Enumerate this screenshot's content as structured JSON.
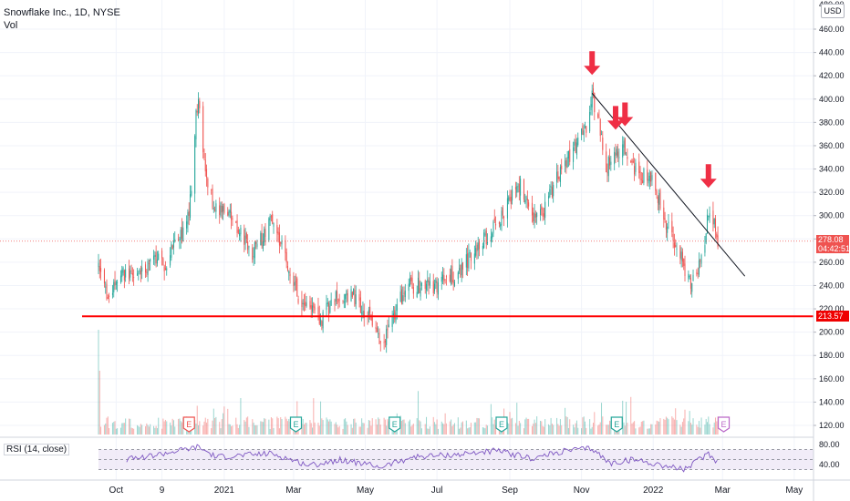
{
  "header": {
    "title": "Snowflake Inc., 1D, NYSE",
    "volume_label": "Vol"
  },
  "currency_button": "USD",
  "price_scale": {
    "labels": [
      "460.00",
      "440.00",
      "420.00",
      "400.00",
      "380.00",
      "360.00",
      "340.00",
      "320.00",
      "300.00",
      "280.00",
      "260.00",
      "240.00",
      "220.00",
      "200.00",
      "180.00",
      "160.00",
      "140.00",
      "120.00"
    ],
    "top_partial": "480.00",
    "current_price": "278.08",
    "countdown": "04:42:51",
    "support_price": "213.57"
  },
  "rsi": {
    "label": "RSI (14, close)",
    "scale_labels": [
      "80.00",
      "40.00"
    ]
  },
  "time_axis": {
    "labels": [
      "Oct",
      "9",
      "2021",
      "Mar",
      "May",
      "Jul",
      "Sep",
      "Nov",
      "2022",
      "Mar",
      "May"
    ]
  },
  "events": {
    "earnings_marker": "E"
  },
  "colors": {
    "up": "#26a69a",
    "down": "#ef5350",
    "support_line": "#ff0000",
    "arrow": "#ef2f45",
    "trendline": "#131722",
    "rsi_line": "#7e57c2",
    "rsi_band": "#ede7f6",
    "current_price_badge": "#ef5350"
  },
  "chart_data": {
    "type": "candlestick",
    "title": "Snowflake Inc., 1D, NYSE",
    "y_range": [
      110,
      470
    ],
    "x_range": [
      "2020-09-16",
      "2022-05-05"
    ],
    "close_path": [
      [
        "2020-09-16",
        254
      ],
      [
        "2020-09-25",
        228
      ],
      [
        "2020-10-05",
        250
      ],
      [
        "2020-10-20",
        248
      ],
      [
        "2020-11-02",
        262
      ],
      [
        "2020-11-12",
        258
      ],
      [
        "2020-11-20",
        280
      ],
      [
        "2020-11-30",
        290
      ],
      [
        "2020-12-04",
        320
      ],
      [
        "2020-12-08",
        385
      ],
      [
        "2020-12-10",
        400
      ],
      [
        "2020-12-15",
        345
      ],
      [
        "2020-12-22",
        312
      ],
      [
        "2021-01-05",
        300
      ],
      [
        "2021-01-15",
        285
      ],
      [
        "2021-01-25",
        268
      ],
      [
        "2021-02-05",
        285
      ],
      [
        "2021-02-10",
        300
      ],
      [
        "2021-02-22",
        265
      ],
      [
        "2021-03-05",
        232
      ],
      [
        "2021-03-15",
        220
      ],
      [
        "2021-03-25",
        212
      ],
      [
        "2021-04-05",
        228
      ],
      [
        "2021-04-20",
        232
      ],
      [
        "2021-05-03",
        215
      ],
      [
        "2021-05-10",
        200
      ],
      [
        "2021-05-14",
        188
      ],
      [
        "2021-05-25",
        215
      ],
      [
        "2021-06-05",
        240
      ],
      [
        "2021-06-20",
        240
      ],
      [
        "2021-07-01",
        240
      ],
      [
        "2021-07-20",
        252
      ],
      [
        "2021-08-05",
        275
      ],
      [
        "2021-08-20",
        290
      ],
      [
        "2021-09-01",
        315
      ],
      [
        "2021-09-10",
        325
      ],
      [
        "2021-09-20",
        298
      ],
      [
        "2021-09-30",
        305
      ],
      [
        "2021-10-10",
        330
      ],
      [
        "2021-10-25",
        355
      ],
      [
        "2021-11-05",
        375
      ],
      [
        "2021-11-10",
        402
      ],
      [
        "2021-11-15",
        385
      ],
      [
        "2021-11-22",
        340
      ],
      [
        "2021-11-30",
        355
      ],
      [
        "2021-12-08",
        358
      ],
      [
        "2021-12-15",
        340
      ],
      [
        "2021-12-22",
        335
      ],
      [
        "2022-01-01",
        330
      ],
      [
        "2022-01-10",
        300
      ],
      [
        "2022-01-20",
        275
      ],
      [
        "2022-01-28",
        255
      ],
      [
        "2022-02-03",
        240
      ],
      [
        "2022-02-08",
        255
      ],
      [
        "2022-02-14",
        275
      ],
      [
        "2022-02-17",
        305
      ],
      [
        "2022-02-22",
        295
      ],
      [
        "2022-02-25",
        278.08
      ]
    ],
    "current_price": 278.08,
    "support_level": 213.57,
    "trendline": {
      "start": [
        "2021-11-10",
        405
      ],
      "end": [
        "2022-03-20",
        248
      ]
    },
    "resistance_touch_arrows": [
      "2021-11-10",
      "2021-11-30",
      "2021-12-08",
      "2022-02-17"
    ],
    "earnings_dates": [
      "2020-12-02",
      "2021-03-03",
      "2021-05-26",
      "2021-08-25",
      "2021-12-01",
      "2022-03-02"
    ],
    "rsi": {
      "period": 14,
      "source": "close",
      "y_range": [
        10,
        90
      ],
      "band": [
        30,
        70
      ],
      "series": [
        [
          "2020-10-10",
          50
        ],
        [
          "2020-11-01",
          58
        ],
        [
          "2020-12-10",
          75
        ],
        [
          "2020-12-25",
          55
        ],
        [
          "2021-02-10",
          62
        ],
        [
          "2021-03-15",
          38
        ],
        [
          "2021-04-10",
          50
        ],
        [
          "2021-05-14",
          35
        ],
        [
          "2021-06-10",
          55
        ],
        [
          "2021-07-20",
          60
        ],
        [
          "2021-08-20",
          68
        ],
        [
          "2021-09-20",
          52
        ],
        [
          "2021-10-20",
          68
        ],
        [
          "2021-11-10",
          72
        ],
        [
          "2021-11-25",
          42
        ],
        [
          "2021-12-15",
          50
        ],
        [
          "2022-01-10",
          38
        ],
        [
          "2022-01-28",
          30
        ],
        [
          "2022-02-17",
          62
        ],
        [
          "2022-02-25",
          45
        ]
      ]
    },
    "time_axis_ticks": [
      [
        "2020-10-01",
        "Oct"
      ],
      [
        "2020-11-09",
        "9"
      ],
      [
        "2021-01-01",
        "2021"
      ],
      [
        "2021-03-01",
        "Mar"
      ],
      [
        "2021-05-01",
        "May"
      ],
      [
        "2021-07-01",
        "Jul"
      ],
      [
        "2021-09-01",
        "Sep"
      ],
      [
        "2021-11-01",
        "Nov"
      ],
      [
        "2022-01-01",
        "2022"
      ],
      [
        "2022-03-01",
        "Mar"
      ],
      [
        "2022-05-01",
        "May"
      ]
    ]
  }
}
